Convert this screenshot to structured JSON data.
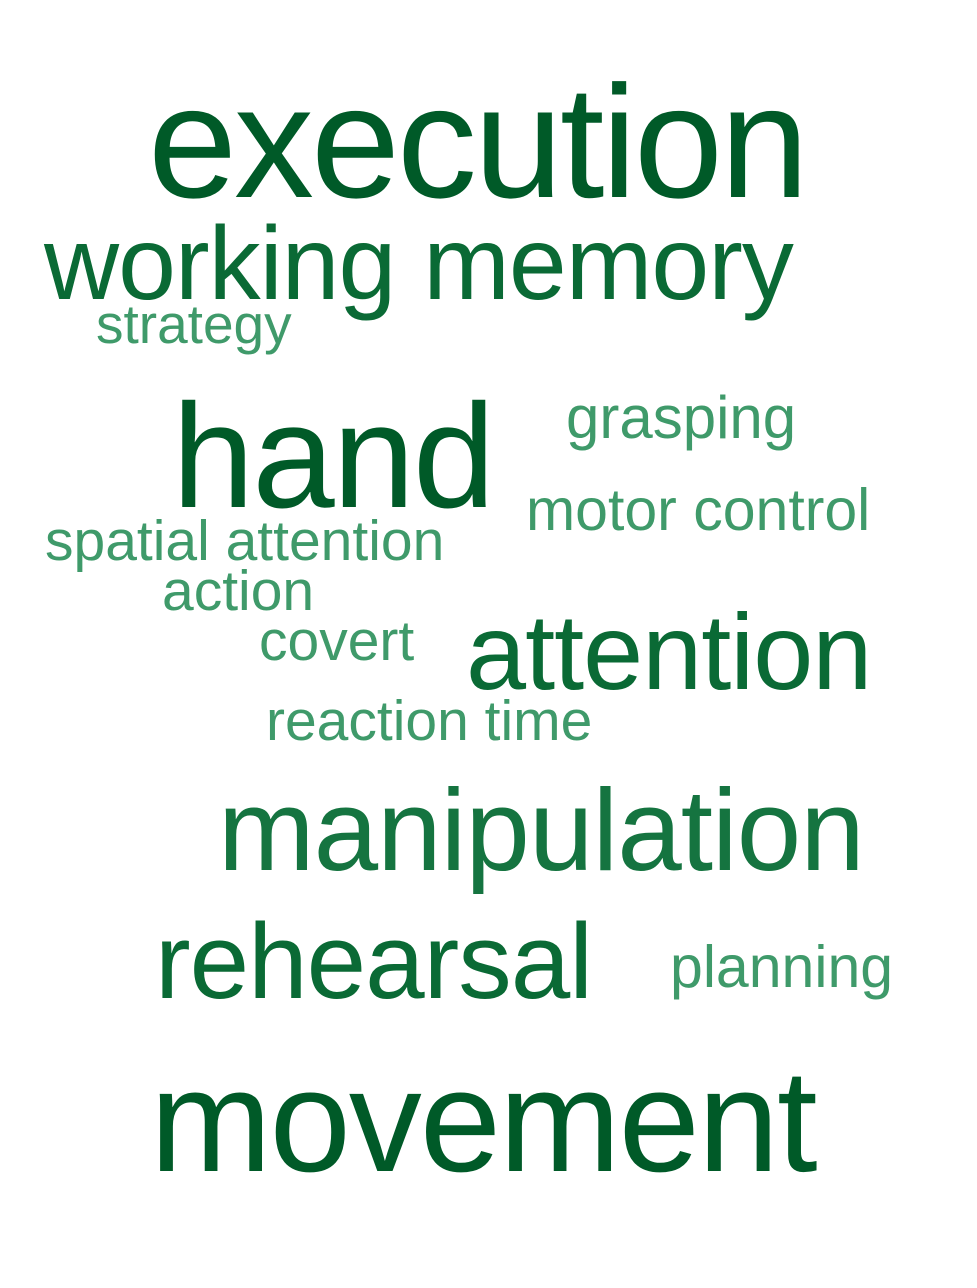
{
  "colors": {
    "dark": "#005f2a",
    "medium": "#0c6e3a",
    "mid_light": "#1f7a45",
    "light": "#3a9867",
    "background": "#ffffff"
  },
  "words": {
    "execution": {
      "text": "execution",
      "color": "#005a28"
    },
    "working_memory": {
      "text": "working memory",
      "color": "#0a6a35"
    },
    "strategy": {
      "text": "strategy",
      "color": "#3f9a6a"
    },
    "hand": {
      "text": "hand",
      "color": "#005a28"
    },
    "grasping": {
      "text": "grasping",
      "color": "#3f9a6a"
    },
    "motor_control": {
      "text": "motor control",
      "color": "#3f9a6a"
    },
    "spatial_attention": {
      "text": "spatial attention",
      "color": "#3f9a6a"
    },
    "action": {
      "text": "action",
      "color": "#3f9a6a"
    },
    "covert": {
      "text": "covert",
      "color": "#3f9a6a"
    },
    "attention": {
      "text": "attention",
      "color": "#0a6a35"
    },
    "reaction_time": {
      "text": "reaction time",
      "color": "#3f9a6a"
    },
    "manipulation": {
      "text": "manipulation",
      "color": "#157440"
    },
    "rehearsal": {
      "text": "rehearsal",
      "color": "#0a6a35"
    },
    "planning": {
      "text": "planning",
      "color": "#3f9a6a"
    },
    "movement": {
      "text": "movement",
      "color": "#005a28"
    }
  }
}
